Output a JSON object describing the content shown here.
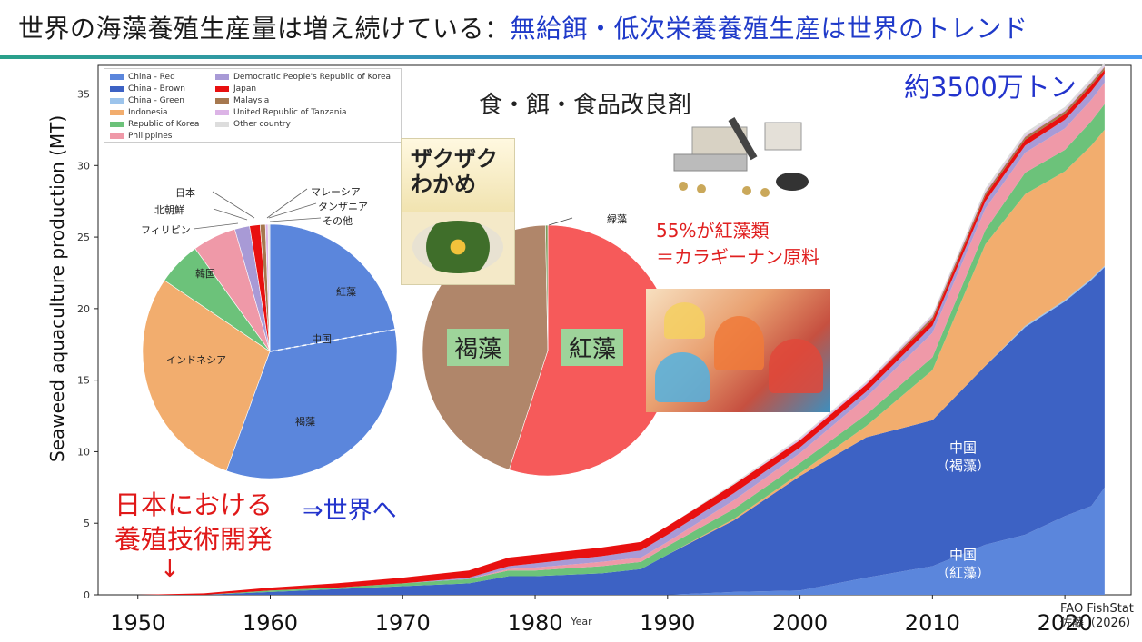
{
  "title": {
    "main": "世界の海藻養殖生産量は増え続けている：",
    "sub": "無給餌・低次栄養養殖生産は世界のトレンド"
  },
  "annotations": {
    "total": "約3500万トン",
    "food": "食・餌・食品改良剤",
    "carrageenan_1": "55%が紅藻類",
    "carrageenan_2": "＝カラギーナン原料",
    "japan_1": "日本における",
    "japan_2": "養殖技術開発",
    "arrow": "↓",
    "world": "⇒世界へ",
    "source_1": "FAO FishStat",
    "source_2": "佐藤（2026）",
    "china_brown_1": "中国",
    "china_brown_2": "（褐藻）",
    "china_red_1": "中国",
    "china_red_2": "（紅藻）",
    "wakame_text": "ザクザクわかめ"
  },
  "chart_data": [
    {
      "type": "area",
      "xlabel": "Year",
      "ylabel": "Seaweed aquaculture production (MT)",
      "xlim": [
        1947,
        2025
      ],
      "ylim": [
        0,
        37
      ],
      "xticks": [
        1950,
        1960,
        1970,
        1980,
        1990,
        2000,
        2010,
        2020
      ],
      "yticks": [
        0,
        5,
        10,
        15,
        20,
        25,
        30,
        35
      ],
      "stacked": true,
      "legend_position": "top-left",
      "x": [
        1950,
        1955,
        1960,
        1965,
        1970,
        1975,
        1978,
        1980,
        1985,
        1988,
        1990,
        1995,
        2000,
        2005,
        2010,
        2014,
        2017,
        2020,
        2022,
        2023
      ],
      "series": [
        {
          "name": "China - Red",
          "color": "#5b86dc",
          "values": [
            0,
            0,
            0,
            0,
            0,
            0,
            0,
            0,
            0,
            0,
            0,
            0.2,
            0.3,
            1.2,
            2.0,
            3.5,
            4.2,
            5.5,
            6.2,
            7.5
          ]
        },
        {
          "name": "China - Brown",
          "color": "#3d62c4",
          "values": [
            0,
            0,
            0.2,
            0.4,
            0.6,
            0.8,
            1.3,
            1.3,
            1.5,
            1.8,
            2.8,
            5.0,
            8.0,
            9.8,
            10.2,
            12.5,
            14.5,
            15.0,
            15.8,
            15.4
          ]
        },
        {
          "name": "China - Green",
          "color": "#9cc4ec",
          "values": [
            0,
            0,
            0,
            0,
            0,
            0,
            0,
            0,
            0,
            0,
            0,
            0,
            0,
            0,
            0,
            0,
            0.1,
            0.1,
            0.1,
            0.1
          ]
        },
        {
          "name": "Indonesia",
          "color": "#f2ad6e",
          "values": [
            0,
            0,
            0,
            0,
            0,
            0,
            0,
            0,
            0,
            0,
            0,
            0.1,
            0.2,
            0.8,
            3.5,
            8.5,
            9.2,
            9.0,
            9.3,
            9.5
          ]
        },
        {
          "name": "Republic of Korea",
          "color": "#6cc27a",
          "values": [
            0,
            0,
            0.1,
            0.1,
            0.2,
            0.3,
            0.4,
            0.4,
            0.5,
            0.5,
            0.6,
            0.7,
            0.7,
            0.8,
            0.9,
            1.0,
            1.5,
            1.5,
            1.7,
            1.8
          ]
        },
        {
          "name": "Philippines",
          "color": "#ef99a8",
          "values": [
            0,
            0,
            0,
            0,
            0,
            0,
            0.1,
            0.2,
            0.3,
            0.3,
            0.3,
            0.6,
            0.7,
            1.2,
            1.7,
            1.5,
            1.4,
            1.5,
            1.5,
            1.5
          ]
        },
        {
          "name": "Democratic People's Republic of Korea",
          "color": "#a89ad6",
          "values": [
            0,
            0,
            0,
            0,
            0,
            0.1,
            0.2,
            0.3,
            0.4,
            0.5,
            0.5,
            0.5,
            0.4,
            0.4,
            0.5,
            0.5,
            0.5,
            0.6,
            0.6,
            0.6
          ]
        },
        {
          "name": "Japan",
          "color": "#e81010",
          "values": [
            0,
            0.1,
            0.2,
            0.3,
            0.4,
            0.5,
            0.6,
            0.6,
            0.6,
            0.6,
            0.6,
            0.6,
            0.5,
            0.5,
            0.4,
            0.4,
            0.4,
            0.4,
            0.4,
            0.3
          ]
        },
        {
          "name": "Malaysia",
          "color": "#a6784f",
          "values": [
            0,
            0,
            0,
            0,
            0,
            0,
            0,
            0,
            0,
            0,
            0,
            0,
            0,
            0,
            0.2,
            0.2,
            0.2,
            0.2,
            0.2,
            0.2
          ]
        },
        {
          "name": "United Republic of Tanzania",
          "color": "#dcb4e6",
          "values": [
            0,
            0,
            0,
            0,
            0,
            0,
            0,
            0,
            0,
            0,
            0,
            0,
            0.1,
            0.1,
            0.1,
            0.1,
            0.1,
            0.1,
            0.1,
            0.1
          ]
        },
        {
          "name": "Other country",
          "color": "#dddddd",
          "values": [
            0,
            0,
            0,
            0,
            0,
            0,
            0,
            0,
            0,
            0,
            0,
            0.1,
            0.1,
            0.1,
            0.1,
            0.2,
            0.2,
            0.2,
            0.2,
            0.2
          ]
        }
      ]
    },
    {
      "type": "pie",
      "labels": [
        "紅藻",
        "中国",
        "褐藻",
        "インドネシア",
        "韓国",
        "フィリピン",
        "北朝鮮",
        "日本",
        "マレーシア",
        "タンザニア",
        "その他"
      ],
      "values": [
        20,
        0,
        30,
        26,
        5,
        5,
        1.7,
        1.2,
        0.6,
        0.3,
        0.2
      ],
      "colors": [
        "#5b86dc",
        "#5b86dc",
        "#5b86dc",
        "#f2ad6e",
        "#6cc27a",
        "#ef99a8",
        "#a89ad6",
        "#e81010",
        "#a6784f",
        "#dcb4e6",
        "#dddddd"
      ]
    },
    {
      "type": "pie",
      "labels": [
        "紅藻",
        "褐藻",
        "緑藻"
      ],
      "values": [
        55,
        44.7,
        0.3
      ],
      "colors": [
        "#f65a5a",
        "#b0866a",
        "#7a9a5a"
      ]
    }
  ]
}
